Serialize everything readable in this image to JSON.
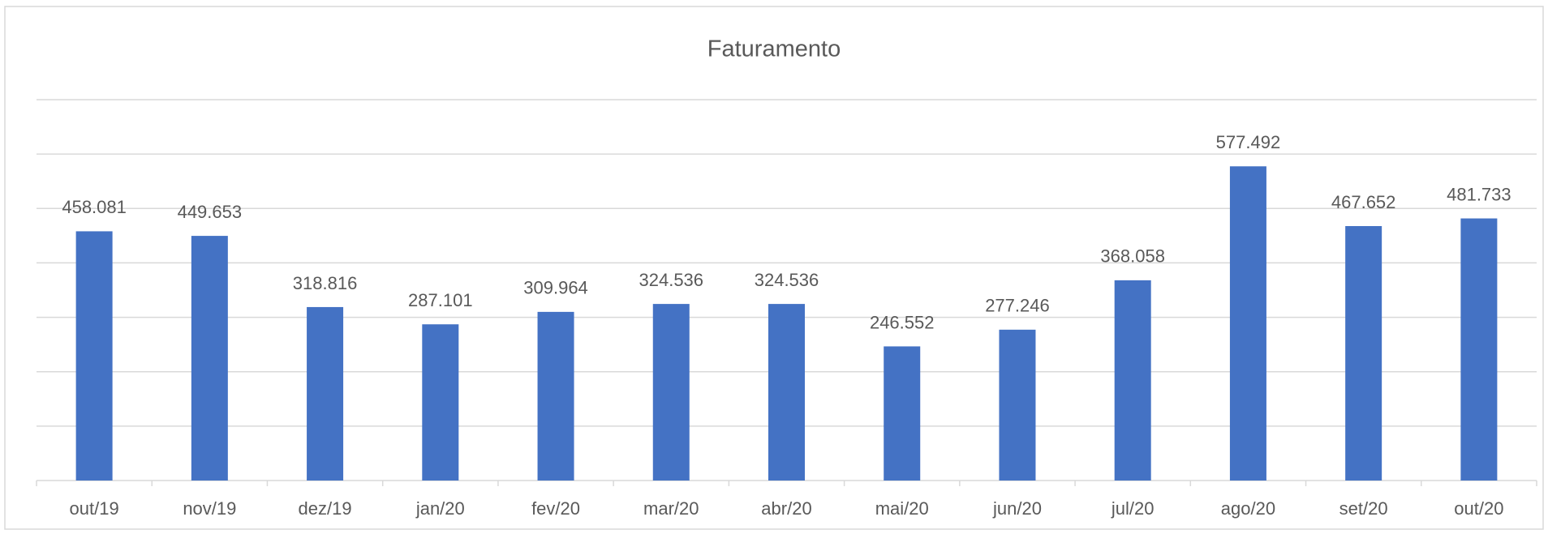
{
  "chart_data": {
    "type": "bar",
    "title": "Faturamento",
    "categories": [
      "out/19",
      "nov/19",
      "dez/19",
      "jan/20",
      "fev/20",
      "mar/20",
      "abr/20",
      "mai/20",
      "jun/20",
      "jul/20",
      "ago/20",
      "set/20",
      "out/20"
    ],
    "values": [
      458.081,
      449.653,
      318.816,
      287.101,
      309.964,
      324.536,
      324.536,
      246.552,
      277.246,
      368.058,
      577.492,
      467.652,
      481.733
    ],
    "color": "#4472c4",
    "ylim": [
      0,
      700
    ],
    "yticks": [
      0,
      100,
      200,
      300,
      400,
      500,
      600,
      700
    ],
    "grid": true
  }
}
